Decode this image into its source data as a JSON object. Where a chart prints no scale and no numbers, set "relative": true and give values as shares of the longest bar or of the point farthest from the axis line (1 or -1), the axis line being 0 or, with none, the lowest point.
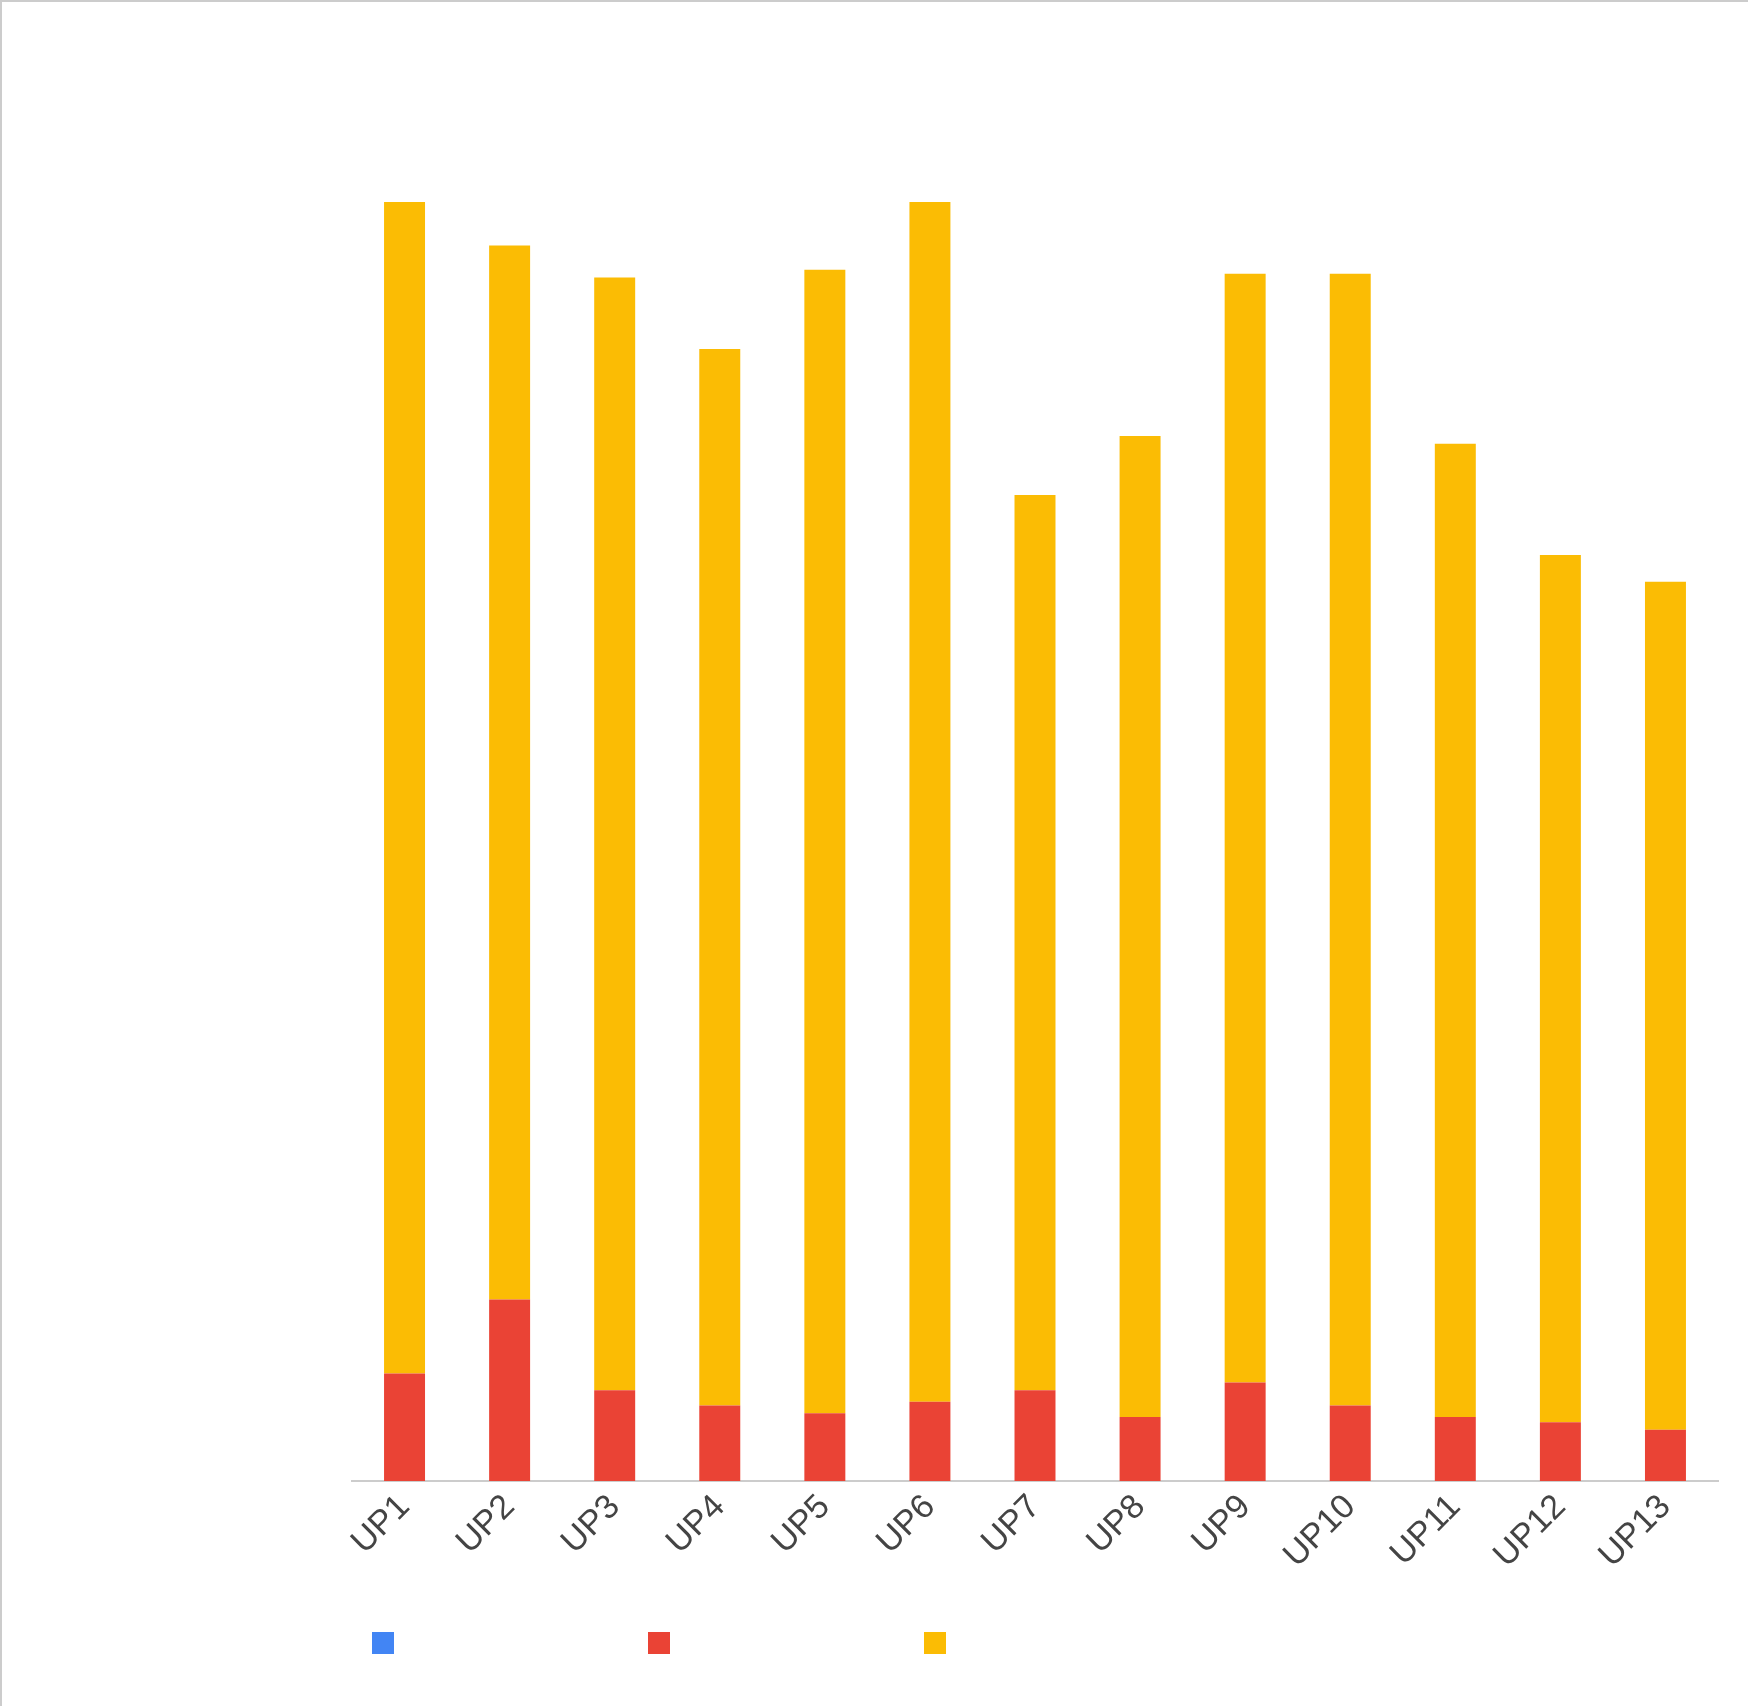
{
  "chart_data": {
    "type": "bar",
    "stacked": true,
    "relative": true,
    "grid": false,
    "categories": [
      "UP1",
      "UP2",
      "UP3",
      "UP4",
      "UP5",
      "UP6",
      "UP7",
      "UP8",
      "UP9",
      "UP10",
      "UP11",
      "UP12",
      "UP13"
    ],
    "series": [
      {
        "color": "#4285f4",
        "values": [
          0,
          0,
          0,
          0,
          0,
          0,
          0,
          0,
          0,
          0,
          0,
          0,
          0
        ]
      },
      {
        "color": "#ea4335",
        "values": [
          0.084,
          0.142,
          0.071,
          0.059,
          0.053,
          0.062,
          0.071,
          0.05,
          0.077,
          0.059,
          0.05,
          0.046,
          0.04
        ]
      },
      {
        "color": "#fbbc04",
        "values": [
          0.916,
          0.824,
          0.87,
          0.826,
          0.894,
          0.938,
          0.7,
          0.767,
          0.867,
          0.885,
          0.761,
          0.678,
          0.663
        ]
      }
    ]
  }
}
